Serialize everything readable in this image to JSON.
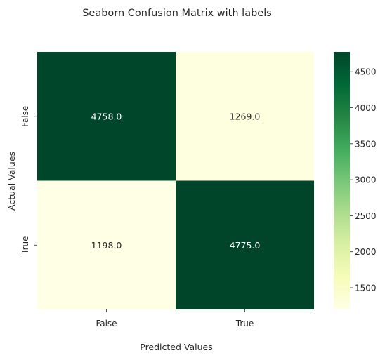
{
  "chart_data": {
    "type": "heatmap",
    "title": "Seaborn Confusion Matrix with labels",
    "xlabel": "Predicted Values",
    "ylabel": "Actual Values",
    "x_categories": [
      "False",
      "True"
    ],
    "y_categories": [
      "False",
      "True"
    ],
    "values": [
      [
        4758.0,
        1269.0
      ],
      [
        1198.0,
        4775.0
      ]
    ],
    "cell_labels": [
      [
        "4758.0",
        "1269.0"
      ],
      [
        "1198.0",
        "4775.0"
      ]
    ],
    "colormap": "YlGn",
    "colorbar": {
      "ticks": [
        1500,
        2000,
        2500,
        3000,
        3500,
        4000,
        4500
      ],
      "tick_labels": [
        "1500",
        "2000",
        "2500",
        "3000",
        "3500",
        "4000",
        "4500"
      ],
      "range": [
        1198,
        4775
      ]
    }
  }
}
